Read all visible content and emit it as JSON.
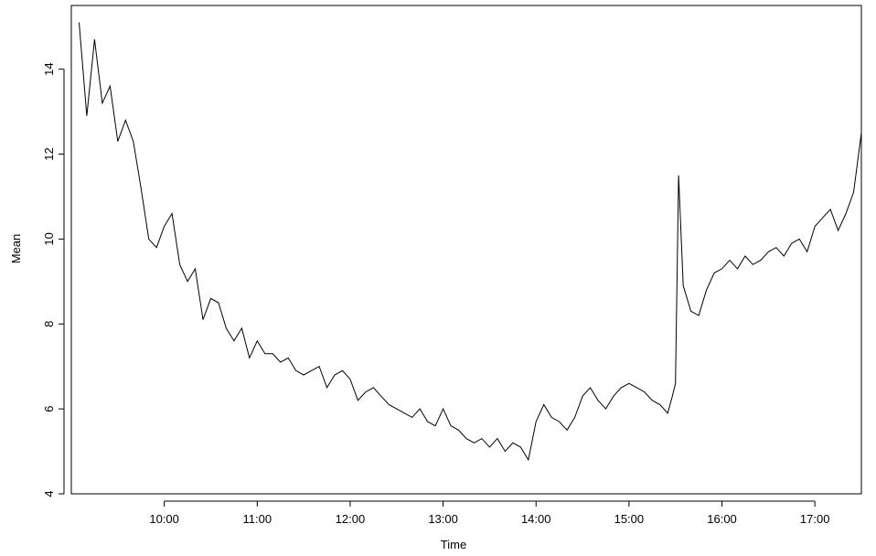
{
  "chart_data": {
    "type": "line",
    "title": "",
    "xlabel": "Time",
    "ylabel": "Mean",
    "xlim": [
      "09:00",
      "17:30"
    ],
    "ylim": [
      4,
      15.5
    ],
    "x_ticks": [
      "10:00",
      "11:00",
      "12:00",
      "13:00",
      "14:00",
      "15:00",
      "16:00",
      "17:00"
    ],
    "y_ticks": [
      "4",
      "6",
      "8",
      "10",
      "12",
      "14"
    ],
    "grid": false,
    "line_color": "#000000",
    "series": [
      {
        "x": [
          "09:05",
          "09:10",
          "09:15",
          "09:20",
          "09:25",
          "09:30",
          "09:35",
          "09:40",
          "09:45",
          "09:50",
          "09:55",
          "10:00",
          "10:05",
          "10:10",
          "10:15",
          "10:20",
          "10:25",
          "10:30",
          "10:35",
          "10:40",
          "10:45",
          "10:50",
          "10:55",
          "11:00",
          "11:05",
          "11:10",
          "11:15",
          "11:20",
          "11:25",
          "11:30",
          "11:35",
          "11:40",
          "11:45",
          "11:50",
          "11:55",
          "12:00",
          "12:05",
          "12:10",
          "12:15",
          "12:20",
          "12:25",
          "12:30",
          "12:35",
          "12:40",
          "12:45",
          "12:50",
          "12:55",
          "13:00",
          "13:05",
          "13:10",
          "13:15",
          "13:20",
          "13:25",
          "13:30",
          "13:35",
          "13:40",
          "13:45",
          "13:50",
          "13:55",
          "14:00",
          "14:05",
          "14:10",
          "14:15",
          "14:20",
          "14:25",
          "14:30",
          "14:35",
          "14:40",
          "14:45",
          "14:50",
          "14:55",
          "15:00",
          "15:05",
          "15:10",
          "15:15",
          "15:20",
          "15:25",
          "15:28",
          "15:30",
          "15:32",
          "15:35",
          "15:40",
          "15:45",
          "15:50",
          "15:55",
          "16:00",
          "16:05",
          "16:10",
          "16:15",
          "16:20",
          "16:25",
          "16:30",
          "16:35",
          "16:40",
          "16:45",
          "16:50",
          "16:55",
          "17:00",
          "17:05",
          "17:10",
          "17:15",
          "17:20",
          "17:25",
          "17:30"
        ],
        "values": [
          15.1,
          12.9,
          14.7,
          13.2,
          13.6,
          12.3,
          12.8,
          12.3,
          11.2,
          10.0,
          9.8,
          10.3,
          10.6,
          9.4,
          9.0,
          9.3,
          8.1,
          8.6,
          8.5,
          7.9,
          7.6,
          7.9,
          7.2,
          7.6,
          7.3,
          7.3,
          7.1,
          7.2,
          6.9,
          6.8,
          6.9,
          7.0,
          6.5,
          6.8,
          6.9,
          6.7,
          6.2,
          6.4,
          6.5,
          6.3,
          6.1,
          6.0,
          5.9,
          5.8,
          6.0,
          5.7,
          5.6,
          6.0,
          5.6,
          5.5,
          5.3,
          5.2,
          5.3,
          5.1,
          5.3,
          5.0,
          5.2,
          5.1,
          4.8,
          5.7,
          6.1,
          5.8,
          5.7,
          5.5,
          5.8,
          6.3,
          6.5,
          6.2,
          6.0,
          6.3,
          6.5,
          6.6,
          6.5,
          6.4,
          6.2,
          6.1,
          5.9,
          6.3,
          6.6,
          11.5,
          8.9,
          8.3,
          8.2,
          8.8,
          9.2,
          9.3,
          9.5,
          9.3,
          9.6,
          9.4,
          9.5,
          9.7,
          9.8,
          9.6,
          9.9,
          10.0,
          9.7,
          10.3,
          10.5,
          10.7,
          10.2,
          10.6,
          11.1,
          12.5
        ]
      }
    ]
  }
}
